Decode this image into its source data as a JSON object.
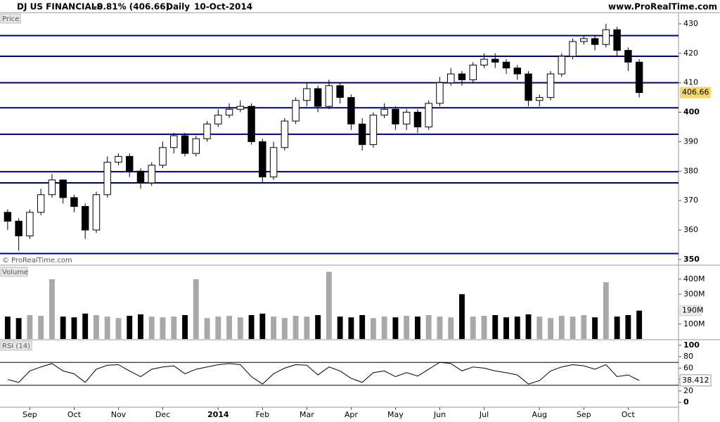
{
  "header": {
    "name": "DJ US FINANCIALS",
    "change": "-0.81% (406.66)",
    "interval": "Daily",
    "date": "10-Oct-2014",
    "source": "www.ProRealTime.com",
    "watermark": "© ProRealTime.com"
  },
  "chart_data": [
    {
      "type": "candlestick",
      "title": "Price",
      "categories": [
        null,
        null,
        "Sep",
        null,
        null,
        null,
        "Oct",
        null,
        null,
        null,
        "Nov",
        null,
        null,
        null,
        "Dec",
        null,
        null,
        null,
        null,
        "2014",
        null,
        null,
        null,
        "Feb",
        null,
        null,
        null,
        "Mar",
        null,
        null,
        null,
        "Apr",
        null,
        null,
        null,
        "May",
        null,
        null,
        null,
        "Jun",
        null,
        null,
        null,
        "Jul",
        null,
        null,
        null,
        null,
        "Aug",
        null,
        null,
        null,
        "Sep",
        null,
        null,
        null,
        "Oct",
        null
      ],
      "open": [
        366,
        363,
        358,
        366,
        372,
        377,
        371,
        368,
        360,
        372,
        383,
        385,
        380,
        376,
        382,
        388,
        392,
        386,
        391,
        396,
        399,
        401,
        402,
        390,
        378,
        388,
        397,
        404,
        408,
        402,
        409,
        405,
        396,
        389,
        399,
        401,
        396,
        400,
        395,
        403,
        410,
        413,
        411,
        416,
        418,
        417,
        415,
        413,
        404,
        405,
        413,
        419,
        424,
        425,
        423,
        428,
        421,
        417
      ],
      "high": [
        367,
        364,
        367,
        374,
        379,
        377,
        372,
        369,
        373,
        385,
        386,
        386,
        381,
        383,
        390,
        393,
        393,
        392,
        397,
        401,
        403,
        404,
        403,
        391,
        390,
        398,
        405,
        410,
        409,
        411,
        410,
        406,
        398,
        400,
        403,
        402,
        401,
        401,
        404,
        412,
        415,
        414,
        417,
        420,
        420,
        418,
        416,
        414,
        406,
        414,
        420,
        425,
        426,
        426,
        430,
        429,
        422,
        418
      ],
      "low": [
        360,
        353,
        357,
        365,
        371,
        369,
        366,
        357,
        359,
        371,
        382,
        378,
        374,
        375,
        381,
        386,
        385,
        385,
        390,
        395,
        398,
        400,
        389,
        376,
        377,
        387,
        396,
        402,
        400,
        401,
        403,
        394,
        387,
        388,
        398,
        394,
        394,
        393,
        394,
        402,
        409,
        409,
        410,
        415,
        415,
        413,
        411,
        402,
        402,
        404,
        412,
        418,
        423,
        421,
        422,
        419,
        414,
        405
      ],
      "close": [
        363,
        358,
        366,
        372,
        377,
        371,
        368,
        360,
        372,
        383,
        385,
        380,
        376,
        382,
        388,
        392,
        386,
        391,
        396,
        399,
        401,
        402,
        390,
        378,
        388,
        397,
        404,
        408,
        402,
        409,
        405,
        396,
        389,
        399,
        401,
        396,
        400,
        395,
        403,
        410,
        413,
        411,
        416,
        418,
        417,
        415,
        413,
        404,
        405,
        413,
        419,
        424,
        425,
        423,
        428,
        421,
        417,
        406.66
      ],
      "ylim": [
        348.3,
        433.8
      ],
      "yticks": [
        350,
        360,
        370,
        380,
        390,
        400,
        410,
        420,
        430
      ],
      "levels": [
        426,
        419,
        410,
        401.5,
        392.5,
        379.8,
        376,
        352
      ],
      "level_color": "#00007f"
    },
    {
      "type": "bar",
      "title": "Volume",
      "values": [
        150000000,
        140000000,
        160000000,
        155000000,
        400000000,
        150000000,
        145000000,
        170000000,
        160000000,
        150000000,
        140000000,
        155000000,
        165000000,
        150000000,
        145000000,
        150000000,
        160000000,
        400000000,
        140000000,
        150000000,
        155000000,
        145000000,
        160000000,
        170000000,
        150000000,
        140000000,
        155000000,
        150000000,
        160000000,
        450000000,
        150000000,
        145000000,
        160000000,
        140000000,
        150000000,
        145000000,
        155000000,
        150000000,
        160000000,
        150000000,
        145000000,
        300000000,
        150000000,
        155000000,
        160000000,
        145000000,
        150000000,
        165000000,
        150000000,
        140000000,
        155000000,
        150000000,
        160000000,
        145000000,
        380000000,
        150000000,
        160000000,
        190000000
      ],
      "last_label": "190M",
      "ylim": [
        0,
        480000000
      ],
      "yticks": [
        {
          "value": 100000000,
          "label": "100M"
        },
        {
          "value": 300000000,
          "label": "300M"
        },
        {
          "value": 400000000,
          "label": "400M"
        }
      ]
    },
    {
      "type": "line",
      "title": "RSI (14)",
      "color": "#000000",
      "values": [
        40,
        35,
        55,
        62,
        68,
        55,
        50,
        35,
        58,
        65,
        66,
        55,
        45,
        58,
        62,
        64,
        50,
        58,
        62,
        66,
        68,
        66,
        45,
        32,
        50,
        60,
        66,
        65,
        48,
        62,
        55,
        42,
        35,
        52,
        55,
        45,
        52,
        46,
        58,
        70,
        68,
        55,
        62,
        60,
        55,
        52,
        48,
        32,
        38,
        55,
        62,
        66,
        64,
        58,
        66,
        45,
        48,
        38.412
      ],
      "ylim": [
        -9.8,
        106
      ],
      "yticks": [
        0,
        20,
        40,
        60,
        80,
        100
      ],
      "bands": [
        30,
        70
      ]
    }
  ]
}
